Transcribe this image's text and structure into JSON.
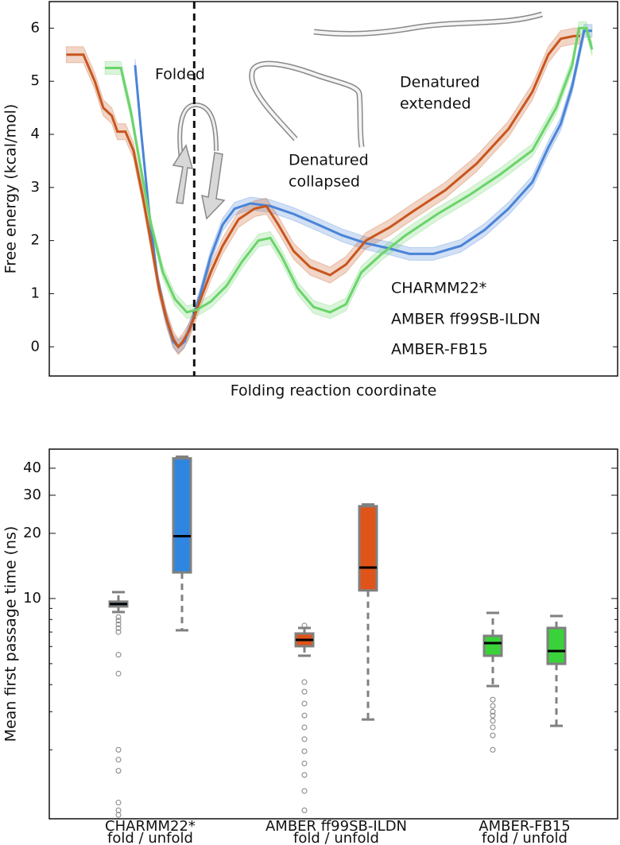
{
  "chart_data": [
    {
      "type": "line",
      "ylabel": "Free energy (kcal/mol)",
      "xlabel": "Folding reaction coordinate",
      "xlim": [
        0,
        100
      ],
      "ylim": [
        -0.55,
        6.5
      ],
      "yticks": [
        0,
        1,
        2,
        3,
        4,
        5,
        6
      ],
      "vline": 25.5,
      "legend": "lower right",
      "annotations": [
        [
          "Folded"
        ],
        [
          "Denatured",
          "collapsed"
        ],
        [
          "Denatured",
          "extended"
        ]
      ],
      "series": [
        {
          "name": "CHARMM22*",
          "color": "#4a84d8",
          "error": 0.12,
          "x": [
            15.1,
            16.2,
            17.6,
            19,
            20.4,
            21.8,
            22.7,
            23.8,
            25.2,
            26.6,
            28.4,
            30.5,
            32.6,
            35.4,
            38.9,
            43,
            47.3,
            51.5,
            55.7,
            59.9,
            63.4,
            67.6,
            72.4,
            76.6,
            80.8,
            85,
            87.8,
            90,
            92,
            94.1,
            95.5
          ],
          "values": [
            5.3,
            4.0,
            2.5,
            1.3,
            0.6,
            0.1,
            0.0,
            0.1,
            0.5,
            1.0,
            1.7,
            2.3,
            2.6,
            2.7,
            2.65,
            2.5,
            2.3,
            2.1,
            1.95,
            1.85,
            1.75,
            1.75,
            1.9,
            2.2,
            2.6,
            3.1,
            3.75,
            4.2,
            4.9,
            5.95,
            5.95
          ]
        },
        {
          "name": "AMBER ff99SB-ILDN",
          "color": "#c8561e",
          "error": 0.15,
          "x": [
            3,
            6,
            8,
            9.5,
            11,
            12,
            13.4,
            14.8,
            16.5,
            18,
            19.3,
            20.7,
            21.8,
            22.7,
            23.5,
            24.6,
            26.3,
            28.4,
            30.5,
            33.3,
            36.1,
            38.2,
            40.3,
            43,
            45.9,
            49.4,
            52.2,
            55.7,
            59.9,
            64,
            69.7,
            75.2,
            80.8,
            85,
            87.8,
            90,
            92.3,
            93.4
          ],
          "values": [
            5.5,
            5.5,
            5.0,
            4.5,
            4.35,
            4.05,
            4.05,
            3.7,
            2.8,
            1.9,
            1.1,
            0.5,
            0.15,
            0.0,
            0.1,
            0.3,
            0.8,
            1.4,
            1.9,
            2.4,
            2.6,
            2.65,
            2.3,
            1.8,
            1.5,
            1.35,
            1.55,
            2.0,
            2.25,
            2.55,
            2.95,
            3.45,
            4.1,
            4.8,
            5.5,
            5.8,
            5.85,
            5.85
          ]
        },
        {
          "name": "AMBER-FB15",
          "color": "#6ad46a",
          "error": 0.12,
          "x": [
            9.8,
            12.6,
            14.4,
            16.2,
            17.9,
            20,
            22.1,
            24.2,
            26,
            28.4,
            31.2,
            33.9,
            36.8,
            38.9,
            40.9,
            43.7,
            46.5,
            49.4,
            52.2,
            54.9,
            58.5,
            62.7,
            68.3,
            73.8,
            79.4,
            85,
            89.2,
            92,
            93.2,
            94.5,
            95.5
          ],
          "values": [
            5.25,
            5.25,
            4.4,
            3.3,
            2.3,
            1.4,
            0.9,
            0.65,
            0.7,
            0.85,
            1.15,
            1.6,
            2.0,
            2.05,
            1.7,
            1.1,
            0.75,
            0.65,
            0.8,
            1.4,
            1.75,
            2.1,
            2.5,
            2.85,
            3.25,
            3.7,
            4.5,
            5.3,
            6.0,
            6.0,
            5.6
          ]
        }
      ]
    },
    {
      "type": "box",
      "ylabel": "Mean first passage time (ns)",
      "log_y": true,
      "ylim": [
        0.96,
        49
      ],
      "yticks": [
        10,
        20,
        30,
        40
      ],
      "yticks_minor": [
        2,
        3,
        4,
        5,
        6,
        7,
        8,
        9
      ],
      "categories": [
        "CHARMM22*",
        "AMBER ff99SB-ILDN",
        "AMBER-FB15"
      ],
      "sublabel": "fold / unfold",
      "colors": [
        "#2e86e0",
        "#e0541a",
        "#3ad23a"
      ],
      "boxes": [
        [
          {
            "whislo": 8.66,
            "q1": 9.19,
            "med": 9.43,
            "q3": 9.67,
            "whishi": 10.7,
            "fliers": [
              8.2,
              7.9,
              7.6,
              7.3,
              7.0,
              5.5,
              4.5,
              2.0,
              1.8,
              1.6,
              1.14,
              1.05,
              1.0
            ]
          },
          {
            "whislo": 7.13,
            "q1": 13.2,
            "med": 19.4,
            "q3": 44.4,
            "whishi": 45.2,
            "fliers": []
          }
        ],
        [
          {
            "whislo": 5.44,
            "q1": 6.02,
            "med": 6.44,
            "q3": 6.89,
            "whishi": 7.31,
            "fliers": [
              7.5,
              4.11,
              3.71,
              3.27,
              2.88,
              2.54,
              2.24,
              1.97,
              1.73,
              1.53,
              1.29,
              1.05
            ]
          },
          {
            "whislo": 2.76,
            "q1": 10.9,
            "med": 13.9,
            "q3": 26.7,
            "whishi": 27.2,
            "fliers": []
          }
        ],
        [
          {
            "whislo": 3.94,
            "q1": 5.44,
            "med": 6.22,
            "q3": 6.72,
            "whishi": 8.58,
            "fliers": [
              3.41,
              3.19,
              3.0,
              2.88,
              2.72,
              2.54,
              2.33,
              2.0
            ]
          },
          {
            "whislo": 2.58,
            "q1": 4.99,
            "med": 5.72,
            "q3": 7.31,
            "whishi": 8.3,
            "fliers": []
          }
        ]
      ]
    }
  ]
}
